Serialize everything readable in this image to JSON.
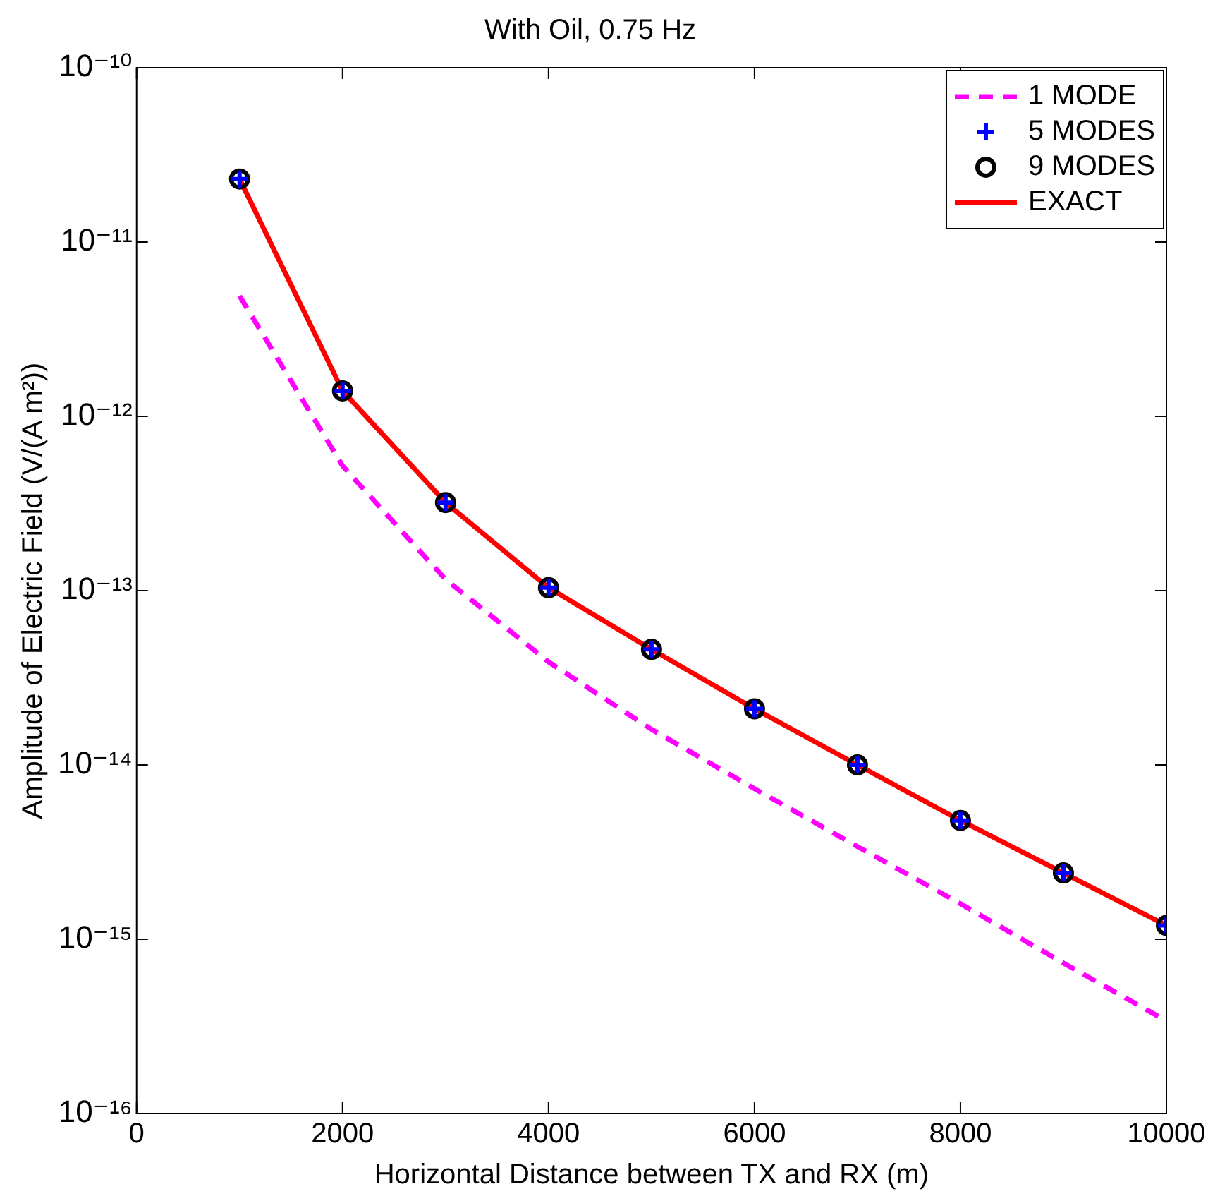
{
  "chart_data": {
    "type": "line",
    "title": "With Oil, 0.75 Hz",
    "xlabel": "Horizontal Distance between TX and RX (m)",
    "ylabel": "Amplitude of Electric Field (V/(A m²))",
    "x": [
      1000,
      2000,
      3000,
      4000,
      5000,
      6000,
      7000,
      8000,
      9000,
      10000
    ],
    "xlim": [
      0,
      10000
    ],
    "xticks": [
      0,
      2000,
      4000,
      6000,
      8000,
      10000
    ],
    "log": "y",
    "ylim": [
      1e-16,
      1e-10
    ],
    "yticks": [
      {
        "value": 1e-16,
        "label": "10⁻¹⁶"
      },
      {
        "value": 1e-15,
        "label": "10⁻¹⁵"
      },
      {
        "value": 1e-14,
        "label": "10⁻¹⁴"
      },
      {
        "value": 1e-13,
        "label": "10⁻¹³"
      },
      {
        "value": 1e-12,
        "label": "10⁻¹²"
      },
      {
        "value": 1e-11,
        "label": "10⁻¹¹"
      },
      {
        "value": 1e-10,
        "label": "10⁻¹⁰"
      }
    ],
    "grid": false,
    "legend": "top right",
    "series": [
      {
        "name": "1 MODE",
        "type": "line",
        "color": "#ff00ff",
        "line_style": "dashed",
        "marker": "none",
        "values": [
          4.9e-12,
          5.2e-13,
          1.16e-13,
          3.9e-14,
          1.6e-14,
          7.3e-15,
          3.4e-15,
          1.6e-15,
          7.3e-16,
          3.4e-16
        ]
      },
      {
        "name": "5 MODES",
        "type": "scatter",
        "color": "#0000ff",
        "marker": "cross",
        "values": [
          2.3e-11,
          1.4e-12,
          3.2e-13,
          1.04e-13,
          4.6e-14,
          2.1e-14,
          1e-14,
          4.8e-15,
          2.4e-15,
          1.2e-15
        ]
      },
      {
        "name": "9 MODES",
        "type": "scatter",
        "color": "#000000",
        "marker": "circle",
        "values": [
          2.3e-11,
          1.4e-12,
          3.2e-13,
          1.04e-13,
          4.6e-14,
          2.1e-14,
          1e-14,
          4.8e-15,
          2.4e-15,
          1.2e-15
        ]
      },
      {
        "name": "EXACT",
        "type": "line",
        "color": "#ff0000",
        "line_style": "solid",
        "marker": "none",
        "values": [
          2.3e-11,
          1.4e-12,
          3.2e-13,
          1.04e-13,
          4.6e-14,
          2.1e-14,
          1e-14,
          4.8e-15,
          2.4e-15,
          1.2e-15
        ]
      }
    ]
  }
}
